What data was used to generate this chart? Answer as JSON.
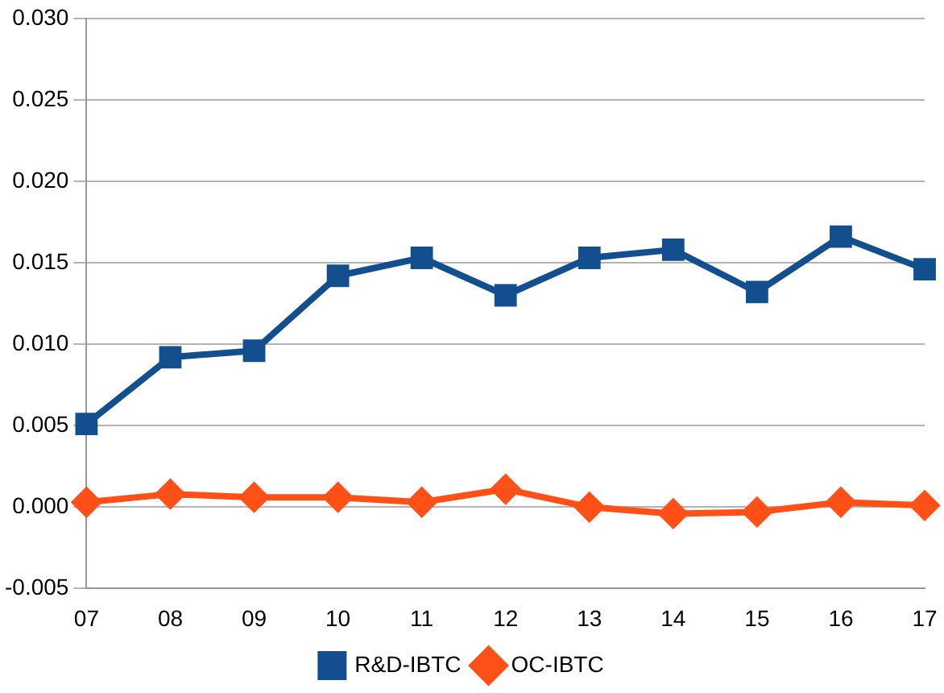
{
  "chart_data": {
    "type": "line",
    "categories": [
      "07",
      "08",
      "09",
      "10",
      "11",
      "12",
      "13",
      "14",
      "15",
      "16",
      "17"
    ],
    "series": [
      {
        "name": "R&D-IBTC",
        "color": "#134f8e",
        "marker": "square",
        "values": [
          0.0051,
          0.0092,
          0.0096,
          0.0142,
          0.0153,
          0.013,
          0.0153,
          0.0158,
          0.0132,
          0.0166,
          0.0146
        ]
      },
      {
        "name": "OC-IBTC",
        "color": "#ff5018",
        "marker": "diamond",
        "values": [
          0.0003,
          0.0008,
          0.0006,
          0.0006,
          0.0003,
          0.0011,
          0.0,
          -0.0004,
          -0.0003,
          0.0003,
          0.0001
        ]
      }
    ],
    "ylim": [
      -0.005,
      0.03
    ],
    "yticks": [
      {
        "value": -0.005,
        "label": "-0.005"
      },
      {
        "value": 0,
        "label": "0.000"
      },
      {
        "value": 0.005,
        "label": "0.005"
      },
      {
        "value": 0.01,
        "label": "0.010"
      },
      {
        "value": 0.015,
        "label": "0.015"
      },
      {
        "value": 0.02,
        "label": "0.020"
      },
      {
        "value": 0.025,
        "label": "0.025"
      },
      {
        "value": 0.03,
        "label": "0.030"
      }
    ],
    "grid": "y",
    "legend": "bottom"
  }
}
